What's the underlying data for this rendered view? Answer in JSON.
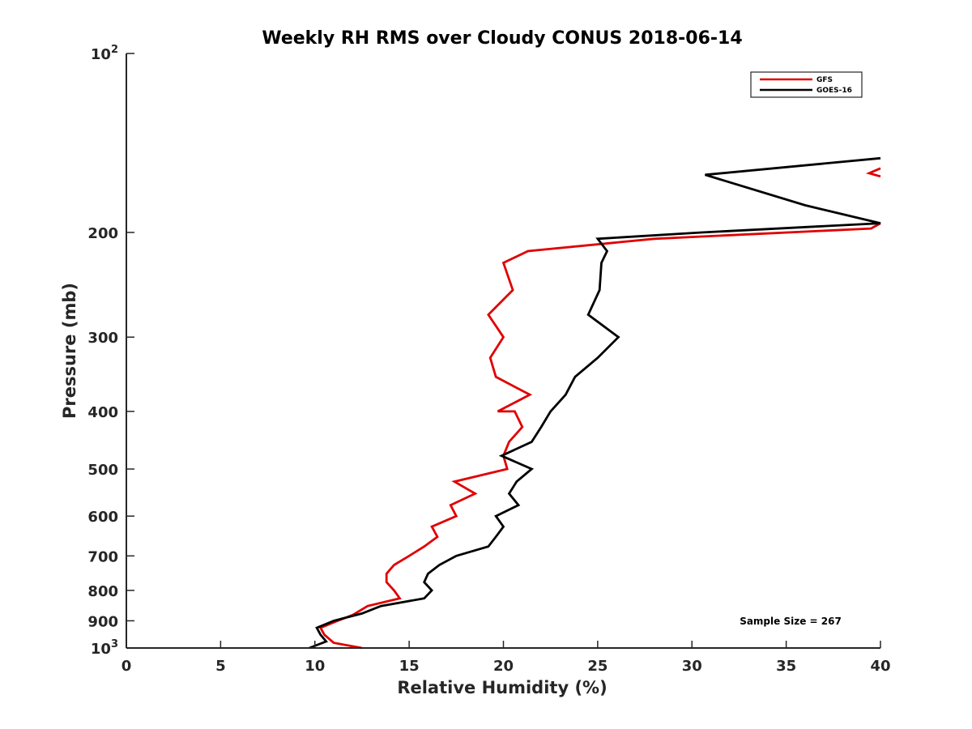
{
  "chart_data": {
    "type": "line",
    "title": "Weekly RH RMS over Cloudy CONUS 2018-06-14",
    "xlabel": "Relative Humidity (%)",
    "ylabel": "Pressure (mb)",
    "xlim": [
      0,
      40
    ],
    "ylim": [
      100,
      1000
    ],
    "y_scale": "log",
    "y_reversed": true,
    "grid": false,
    "legend_position": "top-right",
    "x_ticks": [
      0,
      5,
      10,
      15,
      20,
      25,
      30,
      35,
      40
    ],
    "y_ticks": [
      {
        "value": 100,
        "base": "10",
        "exp": "2"
      },
      {
        "value": 200,
        "label": "200"
      },
      {
        "value": 300,
        "label": "300"
      },
      {
        "value": 400,
        "label": "400"
      },
      {
        "value": 500,
        "label": "500"
      },
      {
        "value": 600,
        "label": "600"
      },
      {
        "value": 700,
        "label": "700"
      },
      {
        "value": 800,
        "label": "800"
      },
      {
        "value": 900,
        "label": "900"
      },
      {
        "value": 1000,
        "base": "10",
        "exp": "3"
      }
    ],
    "annotation": "Sample Size = 267",
    "series": [
      {
        "name": "GFS",
        "color": "#e00000",
        "points": [
          [
            12.5,
            1000
          ],
          [
            11.0,
            980
          ],
          [
            10.5,
            950
          ],
          [
            10.3,
            925
          ],
          [
            11.2,
            900
          ],
          [
            12.0,
            880
          ],
          [
            12.8,
            850
          ],
          [
            14.5,
            825
          ],
          [
            14.2,
            800
          ],
          [
            13.8,
            775
          ],
          [
            13.8,
            750
          ],
          [
            14.2,
            725
          ],
          [
            15.0,
            700
          ],
          [
            15.8,
            675
          ],
          [
            16.5,
            650
          ],
          [
            16.2,
            625
          ],
          [
            17.5,
            600
          ],
          [
            17.2,
            575
          ],
          [
            18.5,
            550
          ],
          [
            17.4,
            525
          ],
          [
            20.2,
            500
          ],
          [
            20.0,
            475
          ],
          [
            20.3,
            450
          ],
          [
            21.0,
            425
          ],
          [
            20.6,
            400
          ],
          [
            19.7,
            400
          ],
          [
            21.4,
            375
          ],
          [
            19.6,
            350
          ],
          [
            19.3,
            325
          ],
          [
            20.0,
            300
          ],
          [
            19.2,
            275
          ],
          [
            20.5,
            250
          ],
          [
            20.0,
            225
          ],
          [
            21.3,
            215
          ],
          [
            28.0,
            205
          ],
          [
            39.5,
            197
          ],
          [
            40.0,
            193
          ]
        ],
        "segments_above": [
          [
            [
              40.0,
              161
            ],
            [
              39.4,
              159
            ],
            [
              40.0,
              156
            ]
          ]
        ]
      },
      {
        "name": "GOES-16",
        "color": "#000000",
        "points": [
          [
            9.7,
            1000
          ],
          [
            10.6,
            975
          ],
          [
            10.3,
            950
          ],
          [
            10.1,
            925
          ],
          [
            11.0,
            900
          ],
          [
            12.5,
            875
          ],
          [
            13.5,
            850
          ],
          [
            15.8,
            825
          ],
          [
            16.2,
            800
          ],
          [
            15.8,
            775
          ],
          [
            16.0,
            750
          ],
          [
            16.6,
            725
          ],
          [
            17.5,
            700
          ],
          [
            19.2,
            675
          ],
          [
            19.6,
            650
          ],
          [
            20.0,
            625
          ],
          [
            19.6,
            600
          ],
          [
            20.8,
            575
          ],
          [
            20.3,
            550
          ],
          [
            20.7,
            525
          ],
          [
            21.5,
            500
          ],
          [
            19.9,
            475
          ],
          [
            21.5,
            450
          ],
          [
            22.0,
            425
          ],
          [
            22.5,
            400
          ],
          [
            23.3,
            375
          ],
          [
            23.8,
            350
          ],
          [
            25.0,
            325
          ],
          [
            26.1,
            300
          ],
          [
            24.5,
            275
          ],
          [
            25.1,
            250
          ],
          [
            25.2,
            225
          ],
          [
            25.5,
            215
          ],
          [
            25.0,
            205
          ],
          [
            30.5,
            200
          ],
          [
            40.0,
            193
          ],
          [
            36.0,
            180
          ],
          [
            30.7,
            160
          ],
          [
            40.0,
            150
          ]
        ]
      }
    ]
  }
}
